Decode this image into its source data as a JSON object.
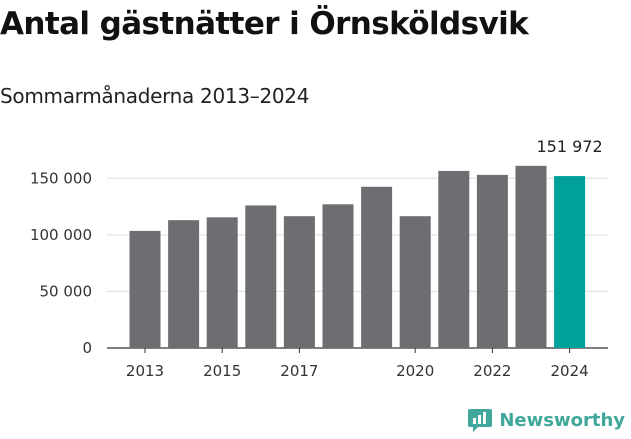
{
  "title": "Antal gästnätter i Örnsköldsvik",
  "subtitle": "Sommarmånaderna 2013–2024",
  "brand": {
    "name": "Newsworthy",
    "icon": "newsworthy-logo-icon",
    "color": "#3fa89a"
  },
  "colors": {
    "bar": "#6e6d72",
    "highlight": "#00a19a",
    "grid": "#dddddd",
    "axis": "#333333"
  },
  "chart_data": {
    "type": "bar",
    "categories": [
      "2013",
      "2014",
      "2015",
      "2016",
      "2017",
      "2018",
      "2019",
      "2020",
      "2021",
      "2022",
      "2023",
      "2024"
    ],
    "values": [
      103500,
      113000,
      115500,
      126000,
      116500,
      127000,
      142500,
      116500,
      156500,
      153000,
      161000,
      151972
    ],
    "highlight_index": 11,
    "data_label": {
      "index": 11,
      "text": "151 972"
    },
    "ylim": [
      0,
      175000
    ],
    "yticks": [
      0,
      50000,
      100000,
      150000
    ],
    "ytick_labels": [
      "0",
      "50 000",
      "100 000",
      "150 000"
    ],
    "xtick_labels": [
      "2013",
      "2015",
      "2017",
      "2020",
      "2022",
      "2024"
    ],
    "xtick_categories": [
      "2013",
      "2015",
      "2017",
      "2020",
      "2022",
      "2024"
    ],
    "grid": true,
    "legend": "none",
    "xlabel": "",
    "ylabel": ""
  }
}
